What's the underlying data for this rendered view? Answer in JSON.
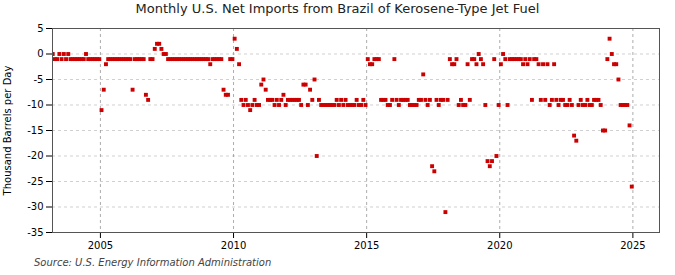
{
  "chart_data": {
    "type": "scatter",
    "title": "Monthly U.S. Net Imports from Brazil of Kerosene-Type Jet Fuel",
    "ylabel": "Thousand Barrels per Day",
    "source": "Source: U.S. Energy Information Administration",
    "xlim": [
      2003.2,
      2026.0
    ],
    "xticks": [
      2005,
      2010,
      2015,
      2020,
      2025
    ],
    "ylim": [
      -35,
      5
    ],
    "yticks": [
      5,
      0,
      -5,
      -10,
      -15,
      -20,
      -25,
      -30,
      -35
    ],
    "grid": true,
    "color": "#cc0000",
    "marker": "square",
    "x": [
      2003.208333,
      2003.291667,
      2003.375,
      2003.458333,
      2003.541667,
      2003.625,
      2003.708333,
      2003.791667,
      2003.875,
      2003.958333,
      2004.041667,
      2004.125,
      2004.208333,
      2004.291667,
      2004.375,
      2004.458333,
      2004.541667,
      2004.625,
      2004.708333,
      2004.791667,
      2004.875,
      2004.958333,
      2005.041667,
      2005.125,
      2005.208333,
      2005.291667,
      2005.375,
      2005.458333,
      2005.541667,
      2005.625,
      2005.708333,
      2005.791667,
      2005.875,
      2005.958333,
      2006.041667,
      2006.125,
      2006.208333,
      2006.291667,
      2006.375,
      2006.458333,
      2006.541667,
      2006.625,
      2006.708333,
      2006.791667,
      2006.875,
      2006.958333,
      2007.041667,
      2007.125,
      2007.208333,
      2007.291667,
      2007.375,
      2007.458333,
      2007.541667,
      2007.625,
      2007.708333,
      2007.791667,
      2007.875,
      2007.958333,
      2008.041667,
      2008.125,
      2008.208333,
      2008.291667,
      2008.375,
      2008.458333,
      2008.541667,
      2008.625,
      2008.708333,
      2008.791667,
      2008.875,
      2008.958333,
      2009.041667,
      2009.125,
      2009.208333,
      2009.291667,
      2009.375,
      2009.458333,
      2009.541667,
      2009.625,
      2009.708333,
      2009.791667,
      2009.875,
      2009.958333,
      2010.041667,
      2010.125,
      2010.208333,
      2010.291667,
      2010.375,
      2010.458333,
      2010.541667,
      2010.625,
      2010.708333,
      2010.791667,
      2010.875,
      2010.958333,
      2011.041667,
      2011.125,
      2011.208333,
      2011.291667,
      2011.375,
      2011.458333,
      2011.541667,
      2011.625,
      2011.708333,
      2011.791667,
      2011.875,
      2011.958333,
      2012.041667,
      2012.125,
      2012.208333,
      2012.291667,
      2012.375,
      2012.458333,
      2012.541667,
      2012.625,
      2012.708333,
      2012.791667,
      2012.875,
      2012.958333,
      2013.041667,
      2013.125,
      2013.208333,
      2013.291667,
      2013.375,
      2013.458333,
      2013.541667,
      2013.625,
      2013.708333,
      2013.791667,
      2013.875,
      2013.958333,
      2014.041667,
      2014.125,
      2014.208333,
      2014.291667,
      2014.375,
      2014.458333,
      2014.541667,
      2014.625,
      2014.708333,
      2014.791667,
      2014.875,
      2014.958333,
      2015.041667,
      2015.125,
      2015.208333,
      2015.291667,
      2015.375,
      2015.458333,
      2015.541667,
      2015.625,
      2015.708333,
      2015.791667,
      2015.875,
      2015.958333,
      2016.041667,
      2016.125,
      2016.208333,
      2016.291667,
      2016.375,
      2016.458333,
      2016.541667,
      2016.625,
      2016.708333,
      2016.791667,
      2016.875,
      2016.958333,
      2017.041667,
      2017.125,
      2017.208333,
      2017.291667,
      2017.375,
      2017.458333,
      2017.541667,
      2017.625,
      2017.708333,
      2017.791667,
      2017.875,
      2017.958333,
      2018.041667,
      2018.125,
      2018.208333,
      2018.291667,
      2018.375,
      2018.458333,
      2018.541667,
      2018.625,
      2018.708333,
      2018.791667,
      2018.875,
      2018.958333,
      2019.041667,
      2019.125,
      2019.208333,
      2019.291667,
      2019.375,
      2019.458333,
      2019.541667,
      2019.625,
      2019.708333,
      2019.791667,
      2019.875,
      2019.958333,
      2020.041667,
      2020.125,
      2020.208333,
      2020.291667,
      2020.375,
      2020.458333,
      2020.541667,
      2020.625,
      2020.708333,
      2020.791667,
      2020.875,
      2020.958333,
      2021.041667,
      2021.125,
      2021.208333,
      2021.291667,
      2021.375,
      2021.458333,
      2021.541667,
      2021.625,
      2021.708333,
      2021.791667,
      2021.875,
      2021.958333,
      2022.041667,
      2022.125,
      2022.208333,
      2022.291667,
      2022.375,
      2022.458333,
      2022.541667,
      2022.625,
      2022.708333,
      2022.791667,
      2022.875,
      2022.958333,
      2023.041667,
      2023.125,
      2023.208333,
      2023.291667,
      2023.375,
      2023.458333,
      2023.541667,
      2023.625,
      2023.708333,
      2023.791667,
      2023.875,
      2023.958333,
      2024.041667,
      2024.125,
      2024.208333,
      2024.291667,
      2024.375,
      2024.458333,
      2024.541667,
      2024.625,
      2024.708333,
      2024.791667,
      2024.875,
      2024.958333
    ],
    "values": [
      0,
      -1,
      -1,
      0,
      -1,
      0,
      -1,
      0,
      -1,
      -1,
      -1,
      -1,
      -1,
      -1,
      -1,
      0,
      -1,
      -1,
      -1,
      -1,
      -1,
      -1,
      -11,
      -7,
      -2,
      -1,
      -1,
      -1,
      -1,
      -1,
      -1,
      -1,
      -1,
      -1,
      -1,
      -1,
      -7,
      -1,
      -1,
      -1,
      -1,
      -1,
      -8,
      -9,
      -1,
      -1,
      1,
      2,
      2,
      1,
      0,
      0,
      -1,
      -1,
      -1,
      -1,
      -1,
      -1,
      -1,
      -1,
      -1,
      -1,
      -1,
      -1,
      -1,
      -1,
      -1,
      -1,
      -1,
      -1,
      -1,
      -2,
      -1,
      -1,
      -1,
      -1,
      -1,
      -7,
      -8,
      -8,
      -1,
      -1,
      3,
      1,
      -2,
      -9,
      -10,
      -9,
      -10,
      -11,
      -10,
      -9,
      -10,
      -10,
      -6,
      -5,
      -7,
      -9,
      -9,
      -9,
      -10,
      -9,
      -10,
      -9,
      -8,
      -10,
      -9,
      -9,
      -9,
      -9,
      -9,
      -9,
      -10,
      -6,
      -6,
      -10,
      -7,
      -9,
      -5,
      -20,
      -9,
      -10,
      -10,
      -10,
      -10,
      -10,
      -10,
      -10,
      -9,
      -10,
      -9,
      -10,
      -9,
      -10,
      -10,
      -10,
      -10,
      -9,
      -10,
      -10,
      -9,
      -10,
      -1,
      -2,
      -2,
      -1,
      -1,
      -1,
      -9,
      -9,
      -9,
      -10,
      -10,
      -9,
      -1,
      -9,
      -10,
      -9,
      -9,
      -9,
      -9,
      -10,
      -10,
      -10,
      -10,
      -9,
      -9,
      -4,
      -9,
      -10,
      -9,
      -22,
      -23,
      -9,
      -10,
      -9,
      -9,
      -31,
      -9,
      -1,
      -2,
      -2,
      -1,
      -10,
      -9,
      -10,
      -10,
      -2,
      -9,
      -1,
      -1,
      -2,
      0,
      -1,
      -2,
      -10,
      -21,
      -22,
      -21,
      -1,
      -20,
      -10,
      -2,
      0,
      -1,
      -10,
      -1,
      -1,
      -1,
      -1,
      -1,
      -1,
      -2,
      -1,
      -2,
      -1,
      -9,
      -1,
      -1,
      -2,
      -9,
      -2,
      -9,
      -2,
      -10,
      -9,
      -2,
      -9,
      -10,
      -9,
      -9,
      -10,
      -10,
      -9,
      -10,
      -16,
      -17,
      -10,
      -9,
      -10,
      -10,
      -9,
      -10,
      -10,
      -9,
      -9,
      -9,
      -10,
      -15,
      -15,
      -1,
      3,
      0,
      -2,
      -2,
      -5,
      -10,
      -10,
      -10,
      -10,
      -14,
      -26
    ]
  }
}
